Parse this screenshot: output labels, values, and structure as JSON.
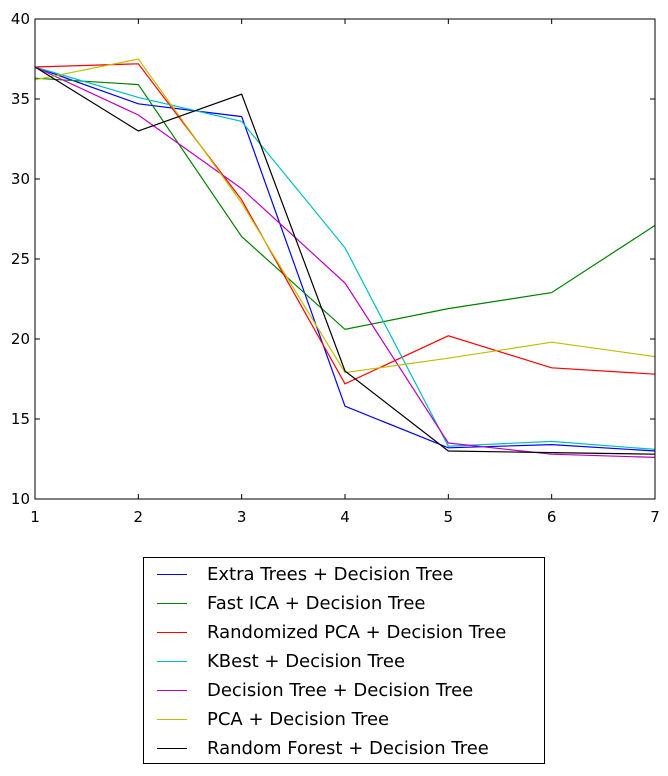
{
  "chart_data": {
    "type": "line",
    "x": [
      1,
      2,
      3,
      4,
      5,
      6,
      7
    ],
    "xlim": [
      1,
      7
    ],
    "ylim": [
      10,
      40
    ],
    "xticks": [
      1,
      2,
      3,
      4,
      5,
      6,
      7
    ],
    "yticks": [
      10,
      15,
      20,
      25,
      30,
      35,
      40
    ],
    "grid": false,
    "legend_position": "below",
    "series": [
      {
        "name": "Extra Trees + Decision Tree",
        "color": "#0000ff",
        "values": [
          37.0,
          34.7,
          33.9,
          15.8,
          13.2,
          13.4,
          13.0
        ]
      },
      {
        "name": "Fast ICA + Decision Tree",
        "color": "#008000",
        "values": [
          36.3,
          35.9,
          26.4,
          20.6,
          21.9,
          22.9,
          27.1
        ]
      },
      {
        "name": "Randomized PCA + Decision Tree",
        "color": "#ff0000",
        "values": [
          37.0,
          37.2,
          28.7,
          17.2,
          20.2,
          18.2,
          17.8
        ]
      },
      {
        "name": "KBest + Decision Tree",
        "color": "#00bfbf",
        "values": [
          37.0,
          35.1,
          33.6,
          25.7,
          13.3,
          13.6,
          13.1
        ]
      },
      {
        "name": "Decision Tree + Decision Tree",
        "color": "#bf00bf",
        "values": [
          37.0,
          34.0,
          29.4,
          23.5,
          13.5,
          12.8,
          12.6
        ]
      },
      {
        "name": "PCA + Decision Tree",
        "color": "#bfbf00",
        "values": [
          36.2,
          37.5,
          28.5,
          17.9,
          18.8,
          19.8,
          18.9
        ]
      },
      {
        "name": "Random Forest + Decision Tree",
        "color": "#000000",
        "values": [
          37.0,
          33.0,
          35.3,
          18.0,
          13.0,
          12.9,
          12.8
        ]
      }
    ]
  }
}
